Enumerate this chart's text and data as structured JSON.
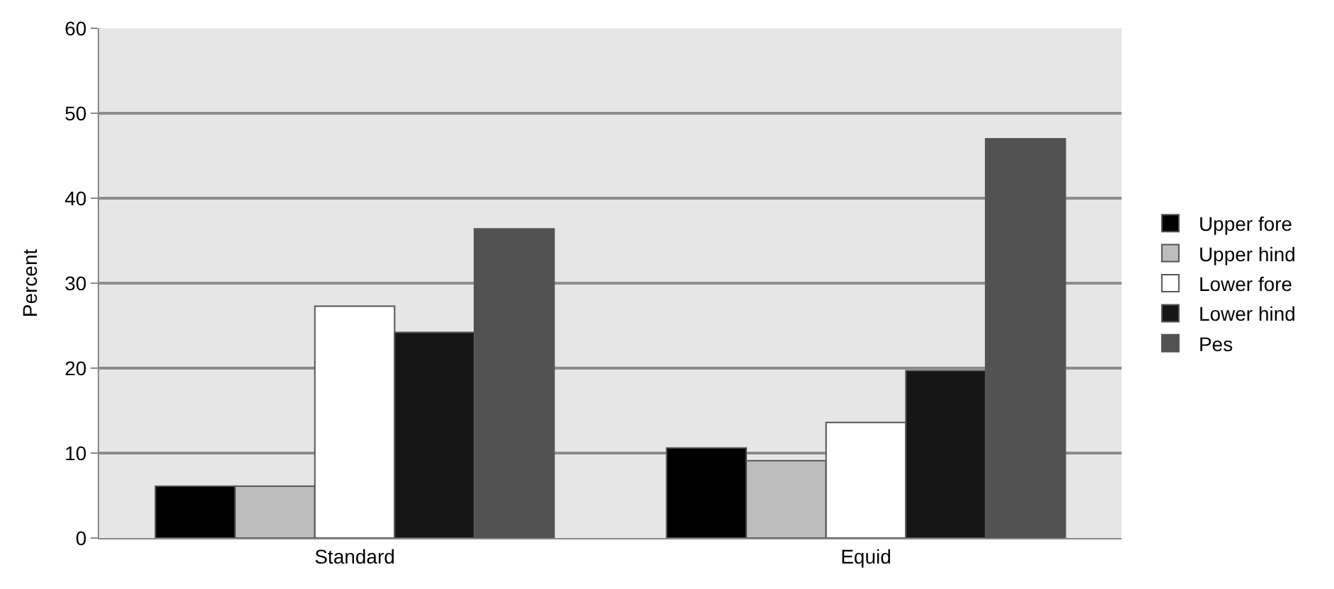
{
  "chart_data": {
    "type": "bar",
    "ylabel": "Percent",
    "categories": [
      "Standard",
      "Equid"
    ],
    "series": [
      {
        "name": "Upper fore",
        "color": "#000000",
        "values": [
          6.1,
          10.6
        ]
      },
      {
        "name": "Upper hind",
        "color": "#bdbdbd",
        "values": [
          6.1,
          9.1
        ]
      },
      {
        "name": "Lower fore",
        "color": "#ffffff",
        "values": [
          27.3,
          13.6
        ]
      },
      {
        "name": "Lower hind",
        "color": "#161616",
        "values": [
          24.2,
          19.7
        ]
      },
      {
        "name": "Pes",
        "color": "#525252",
        "values": [
          36.4,
          47.0
        ]
      }
    ],
    "ylim": [
      0,
      60
    ],
    "yticks": [
      0,
      10,
      20,
      30,
      40,
      50,
      60
    ],
    "grid": "y",
    "legend": "right"
  }
}
